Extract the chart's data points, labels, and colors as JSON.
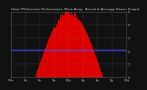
{
  "title": "Solar PV/Inverter Performance West Array  Actual & Average Power Output",
  "title_fontsize": 3.2,
  "bg_color": "#111111",
  "plot_bg_color": "#111111",
  "fig_bg_color": "#111111",
  "bar_color": "#dd0000",
  "avg_line_color": "#4444ff",
  "avg_line_value": 0.42,
  "grid_color": "#888888",
  "num_bars": 144,
  "ylim": [
    0,
    1.0
  ],
  "ylabel_fontsize": 3.0,
  "tick_fontsize": 2.8,
  "yticks": [
    0.0,
    0.2,
    0.4,
    0.6,
    0.8,
    1.0
  ],
  "ytick_labels": [
    "0",
    "1",
    "2",
    "3",
    "4",
    "5"
  ],
  "xtick_count": 9,
  "xtick_labels": [
    "12a",
    "3a",
    "6a",
    "9a",
    "12p",
    "3p",
    "6p",
    "9p",
    "12a"
  ],
  "title_color": "#cccccc",
  "tick_color": "#cccccc",
  "spine_color": "#555555"
}
